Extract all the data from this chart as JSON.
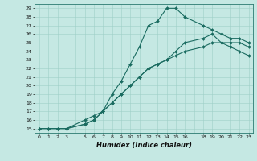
{
  "title": "",
  "xlabel": "Humidex (Indice chaleur)",
  "xlim": [
    -0.5,
    23.5
  ],
  "ylim": [
    14.5,
    29.5
  ],
  "xticks": [
    0,
    1,
    2,
    3,
    5,
    6,
    7,
    8,
    9,
    10,
    11,
    12,
    13,
    14,
    15,
    16,
    18,
    19,
    20,
    21,
    22,
    23
  ],
  "yticks": [
    15,
    16,
    17,
    18,
    19,
    20,
    21,
    22,
    23,
    24,
    25,
    26,
    27,
    28,
    29
  ],
  "bg_color": "#c5e8e3",
  "grid_color": "#9ecfc8",
  "line_color": "#1a6b60",
  "line1_x": [
    0,
    1,
    2,
    3,
    5,
    6,
    7,
    8,
    9,
    10,
    11,
    12,
    13,
    14,
    15,
    16,
    18,
    19,
    20,
    21,
    22,
    23
  ],
  "line1_y": [
    15,
    15,
    15,
    15,
    16,
    16.5,
    17,
    19,
    20.5,
    22.5,
    24.5,
    27,
    27.5,
    29,
    29,
    28,
    27,
    26.5,
    26,
    25.5,
    25.5,
    25
  ],
  "line2_x": [
    0,
    1,
    2,
    3,
    5,
    6,
    7,
    8,
    9,
    10,
    11,
    12,
    13,
    14,
    15,
    16,
    18,
    19,
    20,
    21,
    22,
    23
  ],
  "line2_y": [
    15,
    15,
    15,
    15,
    15.5,
    16,
    17,
    18,
    19,
    20,
    21,
    22,
    22.5,
    23,
    23.5,
    24,
    24.5,
    25,
    25,
    25,
    25,
    24.5
  ],
  "line3_x": [
    3,
    5,
    6,
    7,
    8,
    9,
    10,
    11,
    12,
    13,
    14,
    15,
    16,
    18,
    19,
    20,
    21,
    22,
    23
  ],
  "line3_y": [
    15,
    15.5,
    16,
    17,
    18,
    19,
    20,
    21,
    22,
    22.5,
    23,
    24,
    25,
    25.5,
    26,
    25,
    24.5,
    24,
    23.5
  ]
}
